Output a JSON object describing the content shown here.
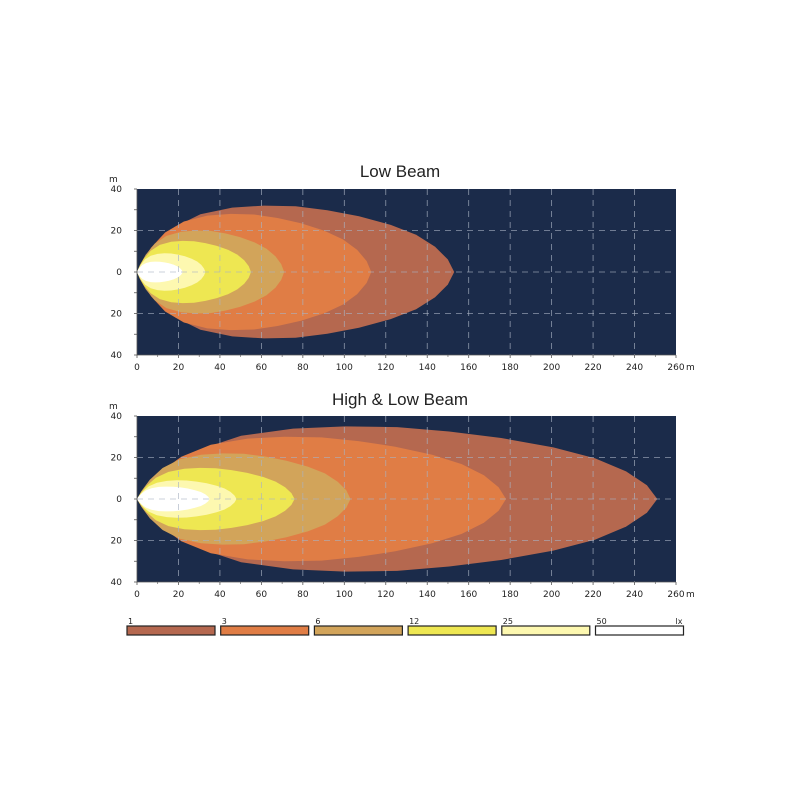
{
  "chart_data": [
    {
      "type": "area",
      "title": "Low Beam",
      "y_unit": "m",
      "x_unit": "m",
      "x_ticks": [
        0,
        20,
        40,
        60,
        80,
        100,
        120,
        140,
        160,
        180,
        200,
        220,
        240,
        260
      ],
      "y_ticks": [
        "40",
        "20",
        "0",
        "20",
        "40"
      ],
      "xlim": [
        0,
        260
      ],
      "ylim": [
        -40,
        40
      ],
      "grid": true,
      "background": "#1b2b4a",
      "isolux_contours": [
        {
          "lux": 1,
          "max_distance_m": 153,
          "max_half_width_m": 32
        },
        {
          "lux": 3,
          "max_distance_m": 113,
          "max_half_width_m": 28
        },
        {
          "lux": 6,
          "max_distance_m": 71,
          "max_half_width_m": 20
        },
        {
          "lux": 12,
          "max_distance_m": 55,
          "max_half_width_m": 15
        },
        {
          "lux": 25,
          "max_distance_m": 33,
          "max_half_width_m": 9
        },
        {
          "lux": 50,
          "max_distance_m": 22,
          "max_half_width_m": 5
        }
      ]
    },
    {
      "type": "area",
      "title": "High & Low Beam",
      "y_unit": "m",
      "x_unit": "m",
      "x_ticks": [
        0,
        20,
        40,
        60,
        80,
        100,
        120,
        140,
        160,
        180,
        200,
        220,
        240,
        260
      ],
      "y_ticks": [
        "40",
        "20",
        "0",
        "20",
        "40"
      ],
      "xlim": [
        0,
        260
      ],
      "ylim": [
        -40,
        40
      ],
      "grid": true,
      "background": "#1b2b4a",
      "isolux_contours": [
        {
          "lux": 1,
          "max_distance_m": 251,
          "max_half_width_m": 35
        },
        {
          "lux": 3,
          "max_distance_m": 178,
          "max_half_width_m": 30
        },
        {
          "lux": 6,
          "max_distance_m": 103,
          "max_half_width_m": 22
        },
        {
          "lux": 12,
          "max_distance_m": 76,
          "max_half_width_m": 15
        },
        {
          "lux": 25,
          "max_distance_m": 48,
          "max_half_width_m": 9
        },
        {
          "lux": 50,
          "max_distance_m": 35,
          "max_half_width_m": 6
        }
      ]
    }
  ],
  "legend": {
    "unit": "lx",
    "items": [
      {
        "label": "1",
        "color": "#b5684f"
      },
      {
        "label": "3",
        "color": "#e07d45"
      },
      {
        "label": "6",
        "color": "#d2a45a"
      },
      {
        "label": "12",
        "color": "#eee752"
      },
      {
        "label": "25",
        "color": "#fdf8b0"
      },
      {
        "label": "50",
        "color": "#ffffff"
      }
    ]
  },
  "colors": {
    "plot_background": "#1b2b4a",
    "grid": "#a9b3c3"
  }
}
